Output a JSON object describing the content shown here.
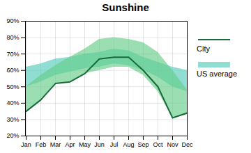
{
  "chart_data": {
    "type": "line",
    "title": "Sunshine",
    "categories": [
      "Jan",
      "Feb",
      "Mar",
      "Apr",
      "May",
      "Jun",
      "Jul",
      "Aug",
      "Sep",
      "Oct",
      "Nov",
      "Dec"
    ],
    "series": [
      {
        "name": "City",
        "color": "#1a6b3a",
        "values": [
          35,
          42,
          52,
          53,
          58,
          67,
          68,
          68,
          60,
          50,
          31,
          34
        ]
      }
    ],
    "bands": [
      {
        "name": "US average",
        "color": "#55ccbb",
        "low": [
          50,
          53,
          57,
          59,
          61,
          62,
          64,
          63,
          60,
          56,
          50,
          47
        ],
        "high": [
          62,
          64,
          67,
          68,
          70,
          71,
          73,
          72,
          68,
          65,
          62,
          60
        ]
      },
      {
        "color": "#66cc88",
        "low": [
          35,
          42,
          52,
          53,
          58,
          60,
          62,
          62,
          57,
          47,
          31,
          33
        ],
        "high": [
          50,
          57,
          63,
          68,
          73,
          79,
          80,
          79,
          77,
          71,
          60,
          48
        ]
      }
    ],
    "ylim": [
      20,
      90
    ],
    "yticks": [
      {
        "value": 20,
        "label": "20%"
      },
      {
        "value": 30,
        "label": "30%"
      },
      {
        "value": 40,
        "label": "40%"
      },
      {
        "value": 50,
        "label": "50%"
      },
      {
        "value": 60,
        "label": "60%"
      },
      {
        "value": 70,
        "label": "70%"
      },
      {
        "value": 80,
        "label": "80%"
      },
      {
        "value": 90,
        "label": "90%"
      }
    ],
    "grid": true
  }
}
